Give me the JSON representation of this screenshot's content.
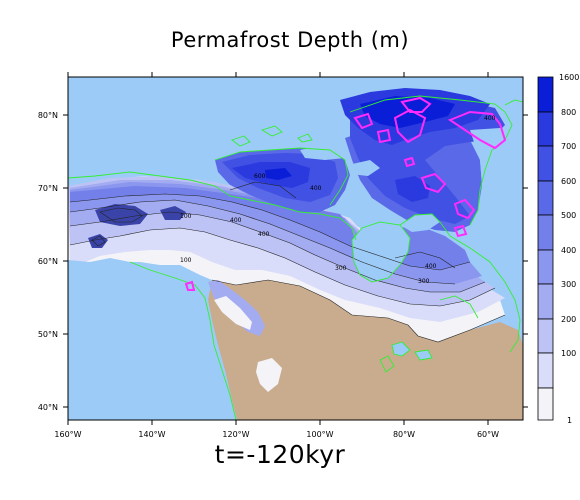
{
  "map": {
    "title": "Permafrost Depth (m)",
    "time_label": "t=-120kyr",
    "lon_ticks": [
      "160°W",
      "140°W",
      "120°W",
      "100°W",
      "80°W",
      "60°W"
    ],
    "lat_ticks": [
      "80°N",
      "70°N",
      "60°N",
      "50°N",
      "40°N"
    ],
    "contour_labels": [
      "100",
      "400",
      "400",
      "600",
      "300",
      "400",
      "300",
      "100",
      "400",
      "400"
    ],
    "colors": {
      "ocean": "#9ccbf7",
      "land_ice_free": "#c9ab8e",
      "coast": "#33ee33",
      "highlight": "#ff2bff"
    }
  },
  "colorbar": {
    "labels": [
      "1600",
      "800",
      "700",
      "600",
      "500",
      "400",
      "300",
      "200",
      "100",
      "1"
    ],
    "colors": [
      "#0a1ed8",
      "#2a3adf",
      "#4051e3",
      "#5a69e7",
      "#7380ea",
      "#8b96ee",
      "#a3abf1",
      "#bdc3f5",
      "#d9ddf9",
      "#f4f4f8"
    ]
  }
}
